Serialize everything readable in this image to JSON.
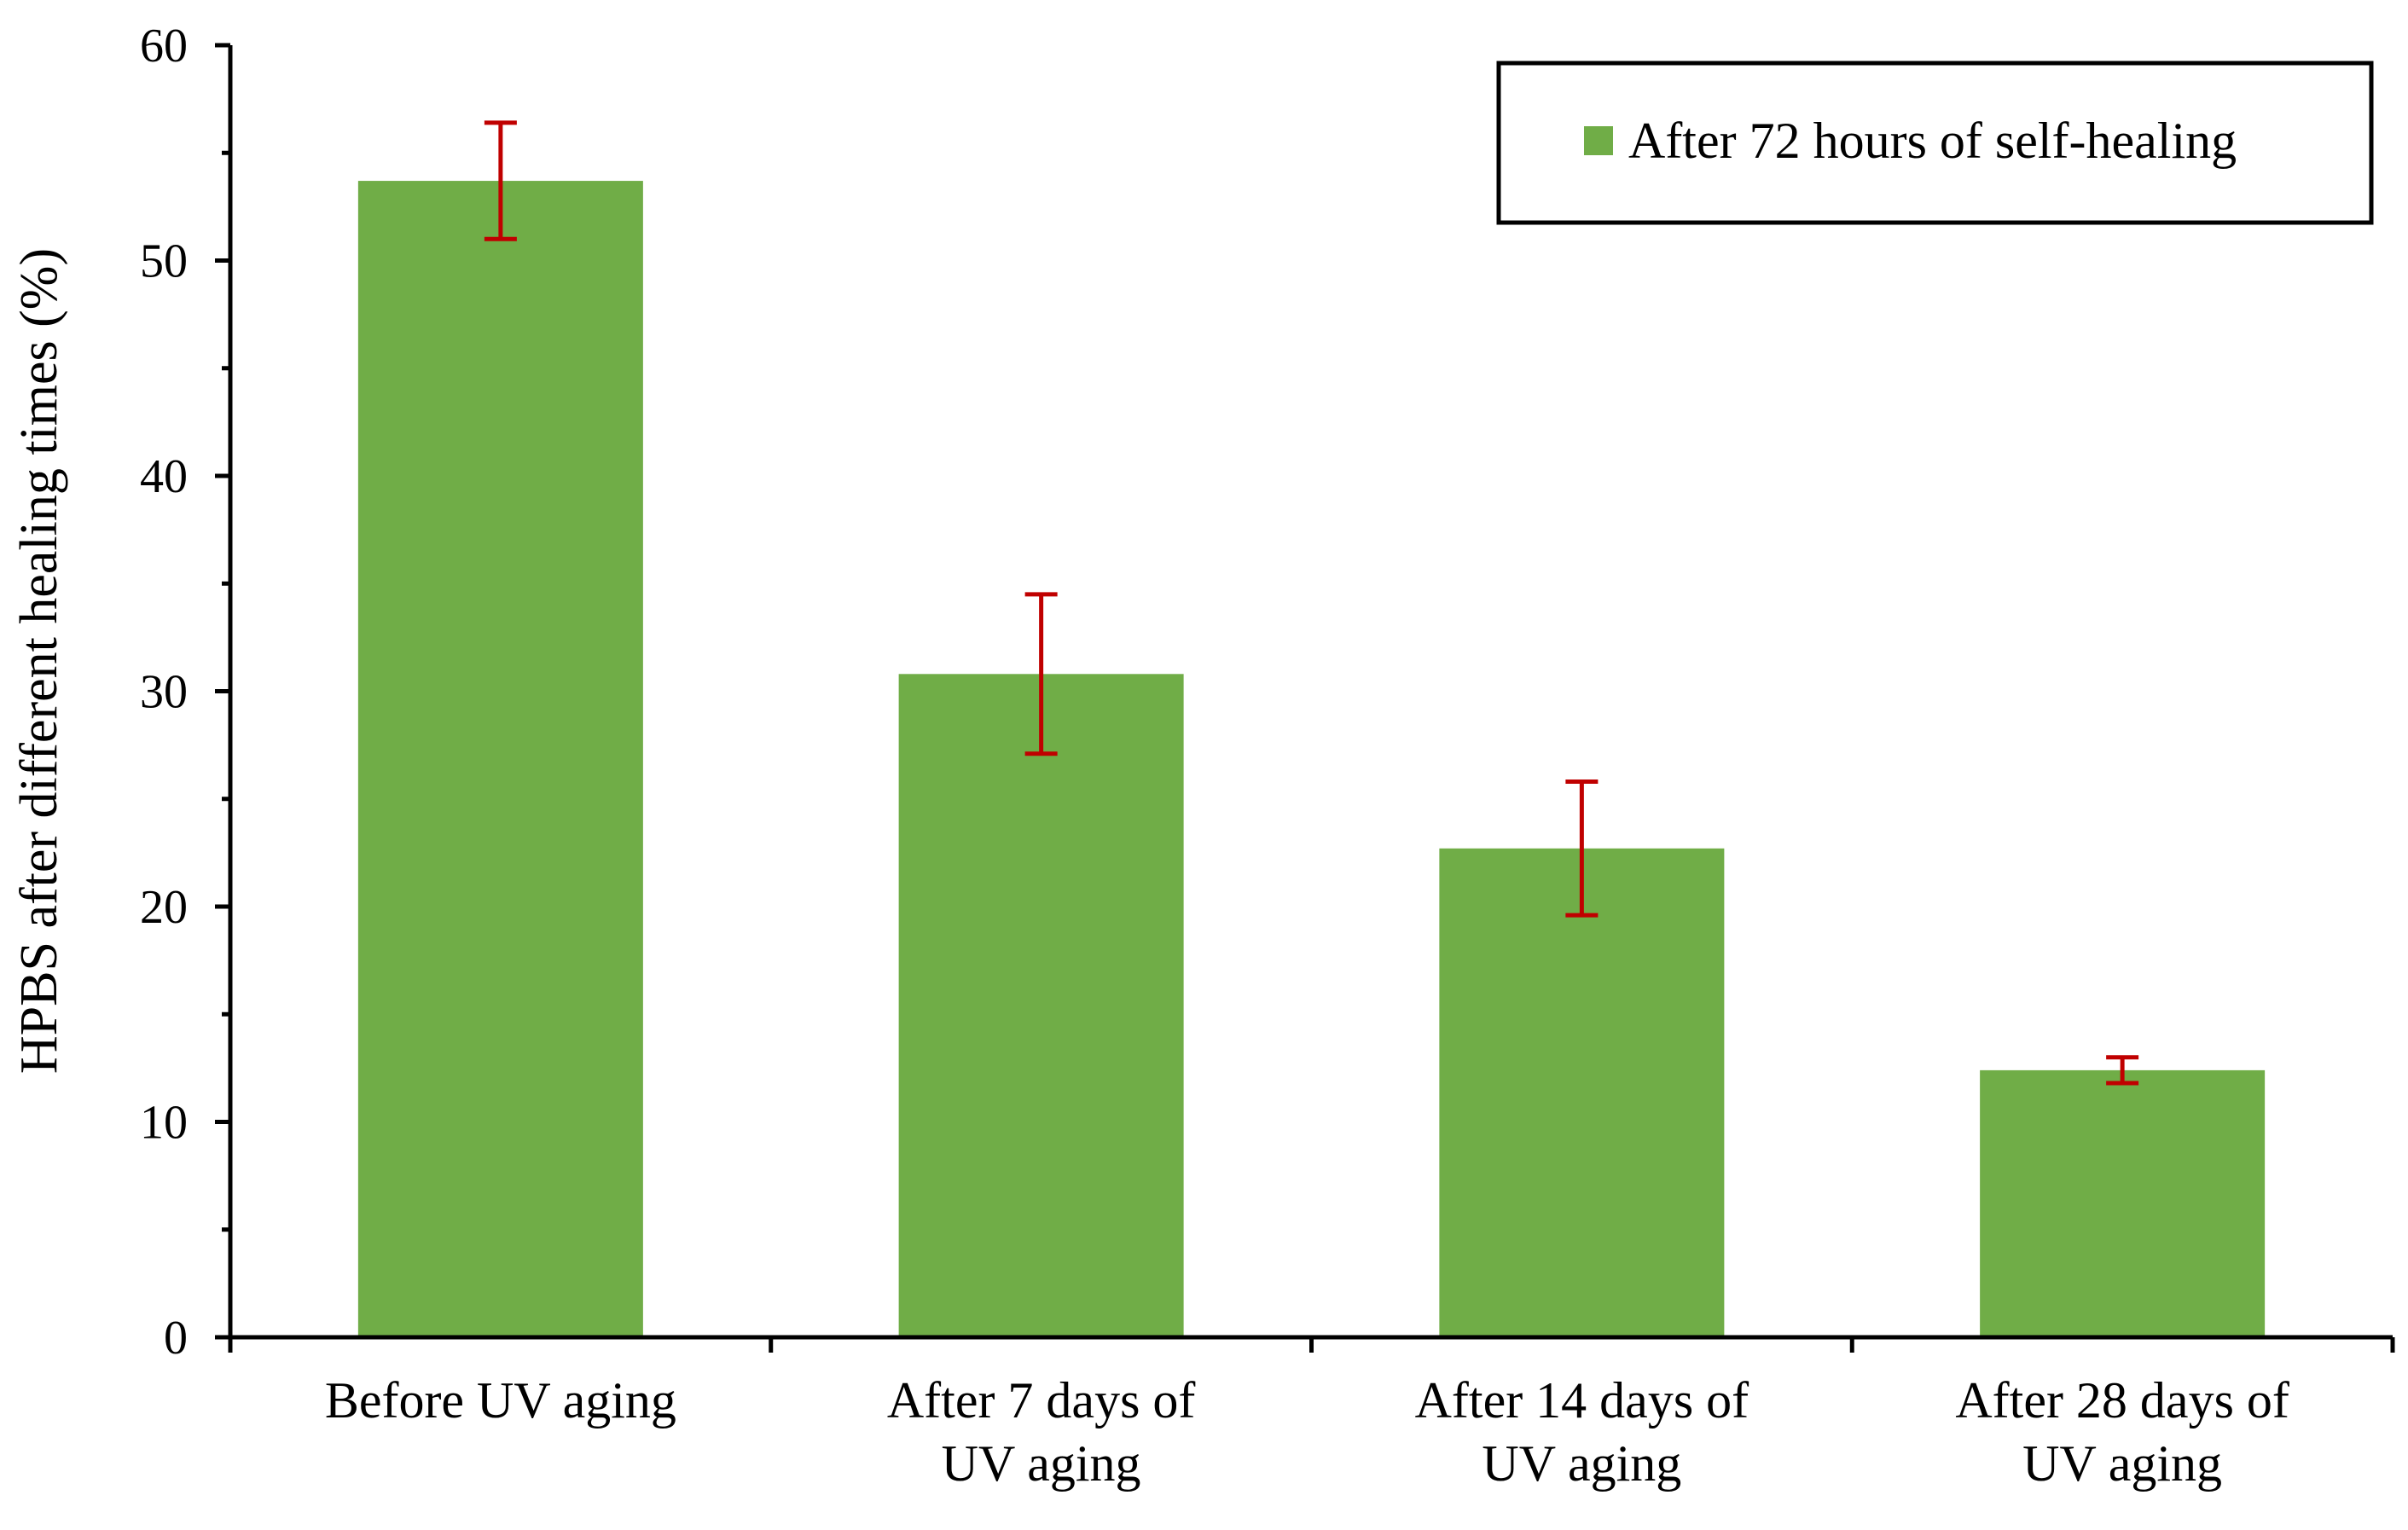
{
  "chart_data": {
    "type": "bar",
    "categories": [
      [
        "Before UV aging"
      ],
      [
        "After 7 days of",
        "UV aging"
      ],
      [
        "After 14 days of",
        "UV aging"
      ],
      [
        "After 28 days of",
        "UV aging"
      ]
    ],
    "series": [
      {
        "name": "After 72 hours of self-healing",
        "values": [
          53.7,
          30.8,
          22.7,
          12.4
        ],
        "errors": [
          2.7,
          3.7,
          3.1,
          0.6
        ],
        "color": "#70AD47"
      }
    ],
    "error_bar_color": "#C00000",
    "ylabel": "HPBS after different healing times (%)",
    "xlabel": "",
    "ylim": [
      0,
      60
    ],
    "yticks": [
      0,
      10,
      20,
      30,
      40,
      50,
      60
    ],
    "minor_ticks_per_major": 2,
    "grid": false,
    "legend": "top-right",
    "legend_boxed": true
  }
}
